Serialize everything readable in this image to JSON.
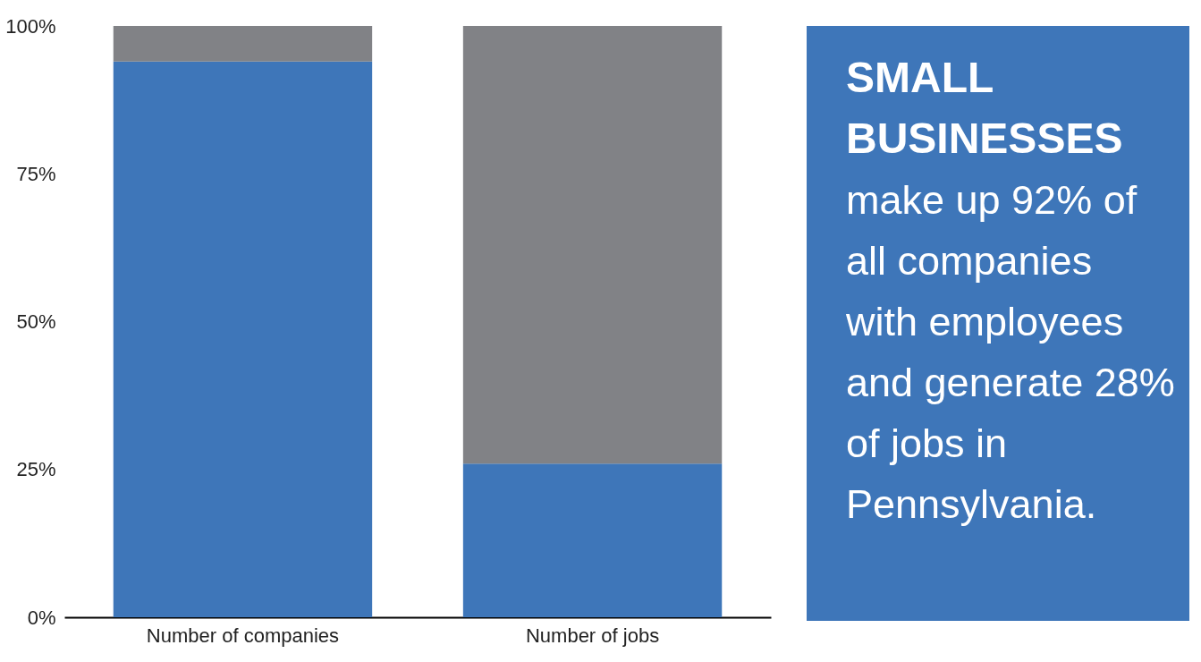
{
  "chart_data": [
    {
      "type": "bar",
      "stacked": true,
      "categories": [
        "Number of companies",
        "Number of jobs"
      ],
      "series": [
        {
          "color": "#3e76b9",
          "values": [
            94,
            26
          ]
        },
        {
          "color": "#818286",
          "values": [
            6,
            74
          ]
        }
      ],
      "ylim": [
        0,
        100
      ],
      "yticks": [
        {
          "value": 0,
          "label": "0%"
        },
        {
          "value": 25,
          "label": "25%"
        },
        {
          "value": 50,
          "label": "50%"
        },
        {
          "value": 75,
          "label": "75%"
        },
        {
          "value": 100,
          "label": "100%"
        }
      ],
      "grid": false,
      "legend": false
    },
    {
      "type": "other",
      "title": "SMALL BUSINESSES",
      "annotations": [
        "make up 92% of all companies with employees and generate 28% of jobs in Pennsylvania."
      ]
    }
  ]
}
